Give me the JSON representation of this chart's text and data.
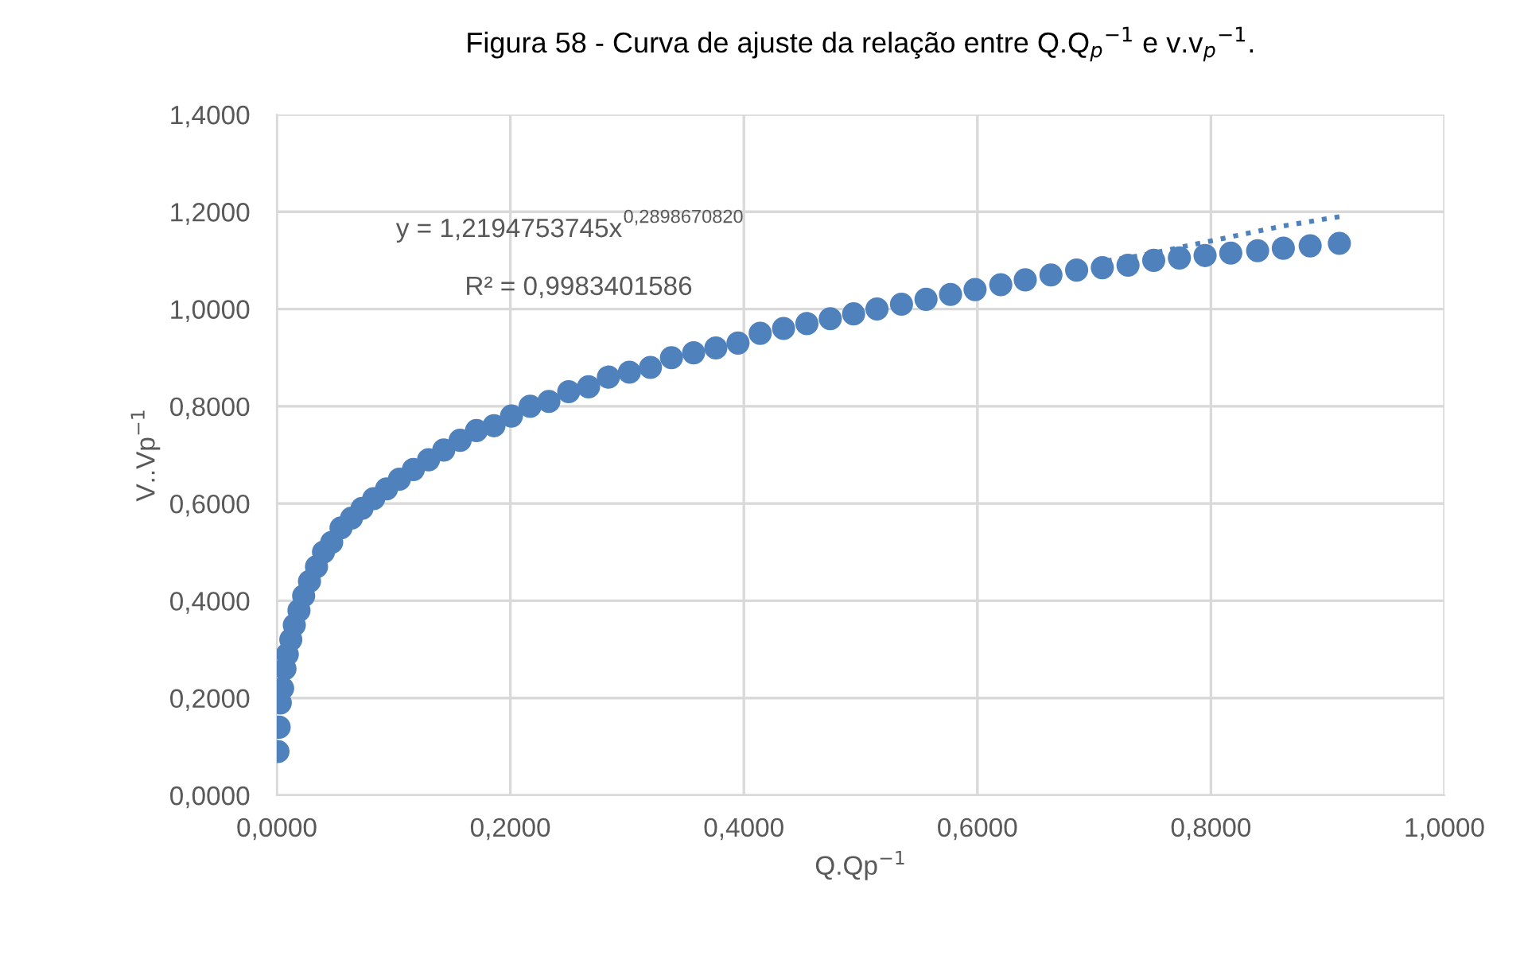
{
  "chart_data": {
    "type": "scatter",
    "title": "Figura 58 - Curva de ajuste da relação entre Q.Q$_{p}$$^{−1}$ e v.v$_{p}$$^{−1}$.",
    "xlabel": "Q.Qp$^{−1}$",
    "ylabel": "V..Vp$^{−1}$",
    "annotations": [
      "y = 1,2194753745x$^{0,2898670820}$",
      "R² = 0,9983401586"
    ],
    "xlim": [
      0,
      1
    ],
    "ylim": [
      0,
      1.4
    ],
    "xticks": [
      {
        "value": 0,
        "label": "0,0000"
      },
      {
        "value": 0.2,
        "label": "0,2000"
      },
      {
        "value": 0.4,
        "label": "0,4000"
      },
      {
        "value": 0.6,
        "label": "0,6000"
      },
      {
        "value": 0.8,
        "label": "0,8000"
      },
      {
        "value": 1,
        "label": "1,0000"
      }
    ],
    "yticks": [
      {
        "value": 0,
        "label": "0,0000"
      },
      {
        "value": 0.2,
        "label": "0,2000"
      },
      {
        "value": 0.4,
        "label": "0,4000"
      },
      {
        "value": 0.6,
        "label": "0,6000"
      },
      {
        "value": 0.8,
        "label": "0,8000"
      },
      {
        "value": 1,
        "label": "1,0000"
      },
      {
        "value": 1.2,
        "label": "1,2000"
      },
      {
        "value": 1.4,
        "label": "1,4000"
      }
    ],
    "grid": true,
    "marker": "circle",
    "series": [
      {
        "color": "#4f81bd",
        "x": [
          0.001,
          0.002,
          0.003,
          0.005,
          0.007,
          0.009,
          0.012,
          0.015,
          0.019,
          0.023,
          0.028,
          0.034,
          0.04,
          0.047,
          0.055,
          0.064,
          0.073,
          0.083,
          0.094,
          0.105,
          0.117,
          0.13,
          0.143,
          0.157,
          0.171,
          0.186,
          0.201,
          0.217,
          0.233,
          0.25,
          0.267,
          0.284,
          0.302,
          0.32,
          0.338,
          0.357,
          0.376,
          0.395,
          0.414,
          0.434,
          0.454,
          0.474,
          0.494,
          0.514,
          0.535,
          0.556,
          0.577,
          0.598,
          0.62,
          0.641,
          0.663,
          0.685,
          0.707,
          0.729,
          0.751,
          0.773,
          0.795,
          0.817,
          0.84,
          0.862,
          0.885,
          0.91
        ],
        "values": [
          0.09,
          0.14,
          0.19,
          0.22,
          0.26,
          0.29,
          0.32,
          0.35,
          0.38,
          0.41,
          0.44,
          0.47,
          0.5,
          0.52,
          0.55,
          0.57,
          0.59,
          0.61,
          0.63,
          0.65,
          0.67,
          0.69,
          0.71,
          0.73,
          0.75,
          0.76,
          0.78,
          0.8,
          0.81,
          0.83,
          0.84,
          0.86,
          0.87,
          0.88,
          0.9,
          0.91,
          0.92,
          0.93,
          0.95,
          0.96,
          0.97,
          0.98,
          0.99,
          1.0,
          1.01,
          1.02,
          1.03,
          1.04,
          1.05,
          1.06,
          1.07,
          1.08,
          1.085,
          1.09,
          1.1,
          1.105,
          1.11,
          1.115,
          1.12,
          1.125,
          1.13,
          1.135
        ]
      },
      {
        "type": "line",
        "color": "#4f81bd",
        "line_style": "dotted",
        "marker": "none",
        "x": [
          0.7,
          0.74,
          0.78,
          0.82,
          0.86,
          0.91
        ],
        "values": [
          1.095,
          1.11,
          1.13,
          1.15,
          1.17,
          1.19
        ]
      }
    ]
  }
}
